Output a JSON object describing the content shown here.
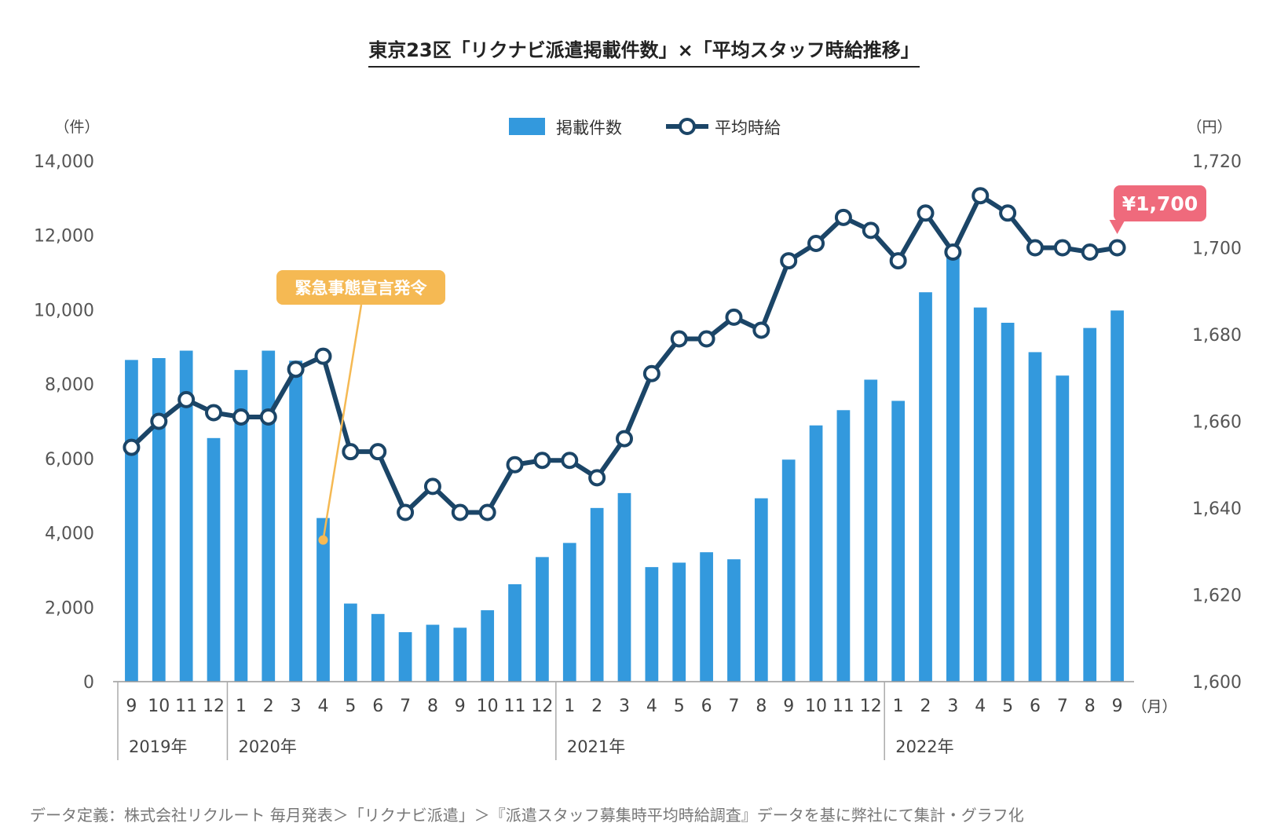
{
  "chart_data": {
    "type": "bar+line",
    "title": "東京23区「リクナビ派遣掲載件数」×「平均スタッフ時給推移」",
    "y_left_label": "（件）",
    "y_right_label": "（円）",
    "x_unit_label": "（月）",
    "y_left_ticks": [
      "0",
      "2,000",
      "4,000",
      "6,000",
      "8,000",
      "10,000",
      "12,000",
      "14,000"
    ],
    "y_right_ticks": [
      "1,600",
      "1,620",
      "1,640",
      "1,660",
      "1,680",
      "1,700",
      "1,720"
    ],
    "ylim_left": [
      0,
      14000
    ],
    "ylim_right": [
      1600,
      1720
    ],
    "categories": [
      "9",
      "10",
      "11",
      "12",
      "1",
      "2",
      "3",
      "4",
      "5",
      "6",
      "7",
      "8",
      "9",
      "10",
      "11",
      "12",
      "1",
      "2",
      "3",
      "4",
      "5",
      "6",
      "7",
      "8",
      "9",
      "10",
      "11",
      "12",
      "1",
      "2",
      "3",
      "4",
      "5",
      "6",
      "7",
      "8",
      "9"
    ],
    "year_groups": [
      {
        "label": "2019年",
        "start": 0
      },
      {
        "label": "2020年",
        "start": 4
      },
      {
        "label": "2021年",
        "start": 16
      },
      {
        "label": "2022年",
        "start": 28
      }
    ],
    "series": [
      {
        "name": "掲載件数",
        "type": "bar",
        "axis": "left",
        "color": "#3399dd",
        "values": [
          8650,
          8700,
          8900,
          6550,
          8380,
          8900,
          8630,
          4400,
          2100,
          1820,
          1330,
          1530,
          1450,
          1920,
          2620,
          3350,
          3730,
          4670,
          5070,
          3080,
          3200,
          3480,
          3290,
          4930,
          5970,
          6890,
          7300,
          8120,
          7550,
          10470,
          11550,
          10060,
          9650,
          8860,
          8230,
          9510,
          9980
        ]
      },
      {
        "name": "平均時給",
        "type": "line",
        "axis": "right",
        "color": "#1b4567",
        "values": [
          1654,
          1660,
          1665,
          1662,
          1661,
          1661,
          1672,
          1675,
          1653,
          1653,
          1639,
          1645,
          1639,
          1639,
          1650,
          1651,
          1651,
          1647,
          1656,
          1671,
          1679,
          1679,
          1684,
          1681,
          1697,
          1701,
          1707,
          1704,
          1697,
          1708,
          1699,
          1712,
          1708,
          1700,
          1700,
          1699,
          1700
        ]
      }
    ],
    "annotations": [
      {
        "text": "緊急事態宣言発令",
        "index": 7,
        "color": "#f5b953"
      },
      {
        "text": "¥1,700",
        "index": 36,
        "color": "#ef6a7c"
      }
    ]
  },
  "footnote": "データ定義：株式会社リクルート 毎月発表＞「リクナビ派遣」＞『派遣スタッフ募集時平均時給調査』データを基に弊社にて集計・グラフ化"
}
